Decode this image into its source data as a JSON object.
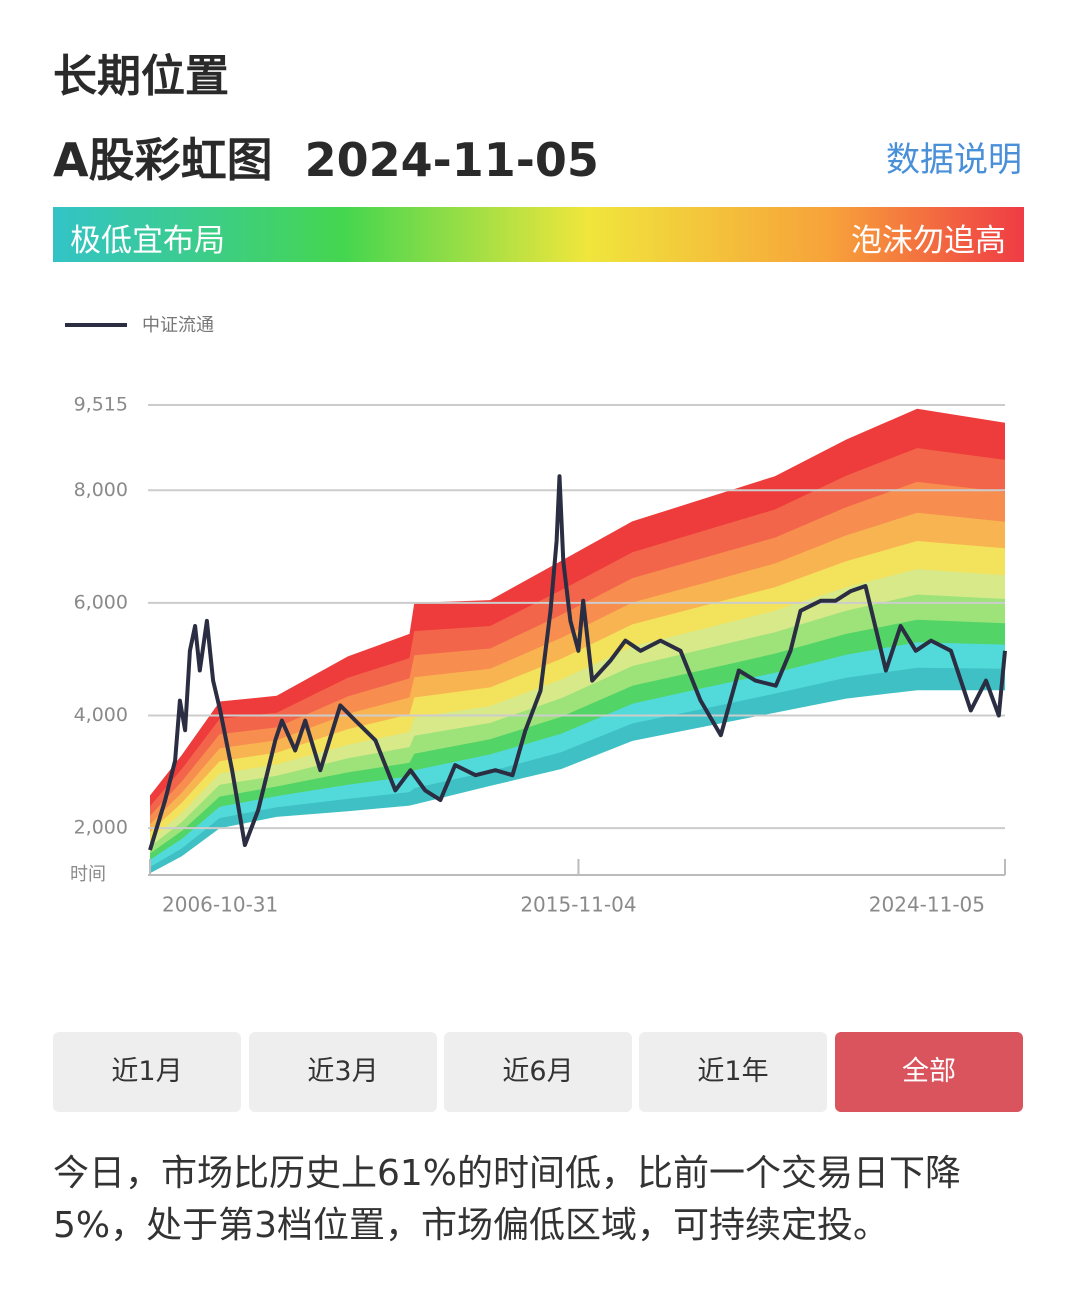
{
  "header": {
    "title": "长期位置",
    "subtitle": "A股彩虹图",
    "date": "2024-11-05",
    "link": "数据说明"
  },
  "scale_bar": {
    "low_label": "极低宜布局",
    "high_label": "泡沫勿追高"
  },
  "chart_data": {
    "type": "line",
    "x_label": "时间",
    "xlim": [
      2006.83,
      2024.85
    ],
    "xticks": [
      {
        "value": 2006.83,
        "label": "2006-10-31"
      },
      {
        "value": 2015.86,
        "label": "2015-11-04"
      },
      {
        "value": 2024.85,
        "label": "2024-11-05"
      }
    ],
    "ylim": [
      1168,
      9515
    ],
    "yticks": [
      {
        "value": 2000,
        "label": "2,000"
      },
      {
        "value": 4000,
        "label": "4,000"
      },
      {
        "value": 6000,
        "label": "6,000"
      },
      {
        "value": 8000,
        "label": "8,000"
      },
      {
        "value": 9515,
        "label": "9,515"
      }
    ],
    "grid": true,
    "x": [
      2006.83,
      2007.15,
      2007.36,
      2007.46,
      2007.57,
      2007.67,
      2007.78,
      2007.88,
      2008.03,
      2008.16,
      2008.31,
      2008.56,
      2008.83,
      2009.11,
      2009.47,
      2009.61,
      2009.89,
      2010.1,
      2010.42,
      2010.84,
      2011.16,
      2011.58,
      2012.0,
      2012.32,
      2012.63,
      2012.95,
      2013.26,
      2013.69,
      2014.11,
      2014.47,
      2014.74,
      2015.06,
      2015.27,
      2015.4,
      2015.46,
      2015.54,
      2015.69,
      2015.86,
      2015.96,
      2016.15,
      2016.53,
      2016.85,
      2017.17,
      2017.59,
      2018.01,
      2018.43,
      2018.86,
      2019.24,
      2019.59,
      2020.02,
      2020.33,
      2020.54,
      2020.97,
      2021.28,
      2021.6,
      2021.91,
      2022.34,
      2022.65,
      2022.97,
      2023.29,
      2023.71,
      2024.13,
      2024.45,
      2024.72,
      2024.85
    ],
    "series": [
      {
        "name": "中证流通",
        "color": "#2b2d42",
        "values": [
          1610,
          2500,
          3200,
          4265,
          3740,
          5150,
          5590,
          4800,
          5680,
          4620,
          4090,
          3030,
          1700,
          2320,
          3560,
          3910,
          3380,
          3910,
          3030,
          4180,
          3910,
          3560,
          2670,
          3030,
          2670,
          2500,
          3120,
          2940,
          3030,
          2940,
          3730,
          4440,
          5860,
          7100,
          8250,
          6740,
          5680,
          5150,
          6040,
          4620,
          4970,
          5330,
          5150,
          5330,
          5150,
          4270,
          3650,
          4800,
          4620,
          4530,
          5150,
          5860,
          6040,
          6040,
          6210,
          6300,
          4800,
          5590,
          5150,
          5330,
          5150,
          4090,
          4620,
          4000,
          5150
        ]
      }
    ],
    "legend": "top-left",
    "bands": {
      "x": [
        2006.83,
        2007.5,
        2008.3,
        2009.5,
        2011,
        2012.3,
        2012.4,
        2014,
        2015.5,
        2017,
        2018.5,
        2020,
        2021.5,
        2023,
        2024.85
      ],
      "layers": [
        {
          "color": "#ee3c3c",
          "values": [
            2580,
            3300,
            4250,
            4350,
            5050,
            5450,
            6000,
            6050,
            6750,
            7450,
            7850,
            8250,
            8900,
            9450,
            9200
          ]
        },
        {
          "color": "#f3654a",
          "values": [
            2390,
            3050,
            3940,
            4050,
            4670,
            5020,
            5500,
            5590,
            6230,
            6900,
            7280,
            7660,
            8260,
            8750,
            8540
          ]
        },
        {
          "color": "#f78d4f",
          "values": [
            2220,
            2830,
            3670,
            3790,
            4340,
            4660,
            5070,
            5190,
            5790,
            6440,
            6800,
            7160,
            7700,
            8150,
            7970
          ]
        },
        {
          "color": "#f9b452",
          "values": [
            2070,
            2630,
            3420,
            3560,
            4030,
            4320,
            4680,
            4830,
            5380,
            6010,
            6350,
            6700,
            7200,
            7600,
            7440
          ]
        },
        {
          "color": "#f3e25c",
          "values": [
            1930,
            2450,
            3190,
            3340,
            3760,
            4020,
            4320,
            4500,
            5010,
            5620,
            5950,
            6280,
            6740,
            7100,
            6970
          ]
        },
        {
          "color": "#d8e98a",
          "values": [
            1790,
            2270,
            2970,
            3130,
            3480,
            3710,
            3960,
            4170,
            4640,
            5230,
            5540,
            5860,
            6280,
            6600,
            6490
          ]
        },
        {
          "color": "#9ee27a",
          "values": [
            1670,
            2110,
            2770,
            2930,
            3240,
            3440,
            3640,
            3870,
            4310,
            4880,
            5180,
            5480,
            5860,
            6150,
            6070
          ]
        },
        {
          "color": "#52d466",
          "values": [
            1550,
            1950,
            2560,
            2740,
            2990,
            3160,
            3320,
            3580,
            3980,
            4530,
            4810,
            5100,
            5450,
            5700,
            5640
          ]
        },
        {
          "color": "#52dada",
          "values": [
            1440,
            1810,
            2380,
            2570,
            2770,
            2920,
            3030,
            3310,
            3680,
            4210,
            4490,
            4760,
            5080,
            5300,
            5260
          ]
        },
        {
          "color": "#3fc0c4",
          "values": [
            1310,
            1640,
            2180,
            2370,
            2520,
            2640,
            2710,
            3010,
            3350,
            3860,
            4120,
            4390,
            4670,
            4850,
            4830
          ]
        },
        {
          "color": "#ffffff",
          "values": [
            1200,
            1500,
            2000,
            2200,
            2300,
            2400,
            2420,
            2750,
            3050,
            3550,
            3800,
            4050,
            4300,
            4450,
            4450
          ]
        }
      ]
    }
  },
  "buttons": [
    "近1月",
    "近3月",
    "近6月",
    "近1年",
    "全部"
  ],
  "summary": "今日，市场比历史上61%的时间低，比前一个交易日下降5%，处于第3档位置，市场偏低区域，可持续定投。"
}
